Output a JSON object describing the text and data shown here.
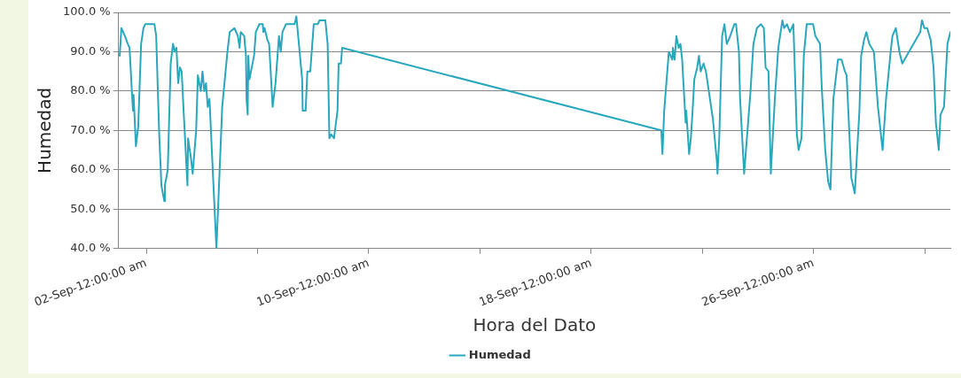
{
  "chart_data": {
    "type": "line",
    "xlabel": "Hora del Dato",
    "ylabel": "Humedad",
    "legend": "bottom",
    "grid": "y",
    "marker": "none",
    "line_style": "solid",
    "xlim": [
      "--09-01T00:00",
      "--09-30T22:00"
    ],
    "xticks": [
      {
        "value": "--09-02T00:00",
        "label": "02-Sep-12:00:00 am"
      },
      {
        "value": "--09-06T00:00",
        "label": null
      },
      {
        "value": "--09-10T00:00",
        "label": "10-Sep-12:00:00 am"
      },
      {
        "value": "--09-14T00:00",
        "label": null
      },
      {
        "value": "--09-18T00:00",
        "label": "18-Sep-12:00:00 am"
      },
      {
        "value": "--09-22T00:00",
        "label": null
      },
      {
        "value": "--09-26T00:00",
        "label": "26-Sep-12:00:00 am"
      },
      {
        "value": "--09-30T00:00",
        "label": null
      }
    ],
    "ylim": [
      40,
      100
    ],
    "yticks": [
      {
        "value": 40,
        "label": "40.0 %"
      },
      {
        "value": 50,
        "label": "50.0 %"
      },
      {
        "value": 60,
        "label": "60.0 %"
      },
      {
        "value": 70,
        "label": "70.0 %"
      },
      {
        "value": 80,
        "label": "80.0 %"
      },
      {
        "value": 90,
        "label": "90.0 %"
      },
      {
        "value": 100,
        "label": "100.0 %"
      }
    ],
    "series": [
      {
        "name": "Humedad",
        "color": "#29a8bd",
        "x": [
          "--09-01T01:00",
          "--09-01T02:30",
          "--09-01T05:30",
          "--09-01T08:00",
          "--09-01T09:30",
          "--09-01T11:30",
          "--09-01T12:30",
          "--09-01T13:00",
          "--09-01T15:00",
          "--09-01T17:00",
          "--09-01T19:30",
          "--09-01T21:30",
          "--09-01T23:00",
          "--09-02T07:00",
          "--09-02T08:30",
          "--09-02T11:00",
          "--09-02T13:00",
          "--09-02T15:30",
          "--09-02T16:00",
          "--09-02T18:30",
          "--09-02T21:00",
          "--09-02T23:00",
          "--09-03T00:30",
          "--09-03T02:00",
          "--09-03T03:30",
          "--09-03T05:00",
          "--09-03T06:30",
          "--09-03T08:00",
          "--09-03T11:30",
          "--09-03T12:00",
          "--09-03T14:30",
          "--09-03T16:00",
          "--09-03T19:00",
          "--09-03T20:30",
          "--09-03T23:00",
          "--09-04T00:30",
          "--09-04T02:00",
          "--09-04T03:30",
          "--09-04T05:00",
          "--09-04T06:30",
          "--09-04T09:00",
          "--09-04T12:30",
          "--09-04T17:30",
          "--09-04T22:00",
          "--09-05T00:00",
          "--09-05T04:00",
          "--09-05T07:00",
          "--09-05T08:30",
          "--09-05T09:30",
          "--09-05T12:30",
          "--09-05T14:00",
          "--09-05T14:30",
          "--09-05T15:30",
          "--09-05T16:00",
          "--09-05T17:00",
          "--09-05T21:00",
          "--09-05T22:30",
          "--09-06T01:30",
          "--09-06T04:30",
          "--09-06T05:00",
          "--09-06T06:00",
          "--09-06T08:30",
          "--09-06T10:00",
          "--09-06T13:00",
          "--09-06T15:30",
          "--09-06T17:00",
          "--09-06T18:30",
          "--09-06T20:00",
          "--09-06T21:30",
          "--09-07T00:30",
          "--09-07T08:00",
          "--09-07T09:30",
          "--09-07T14:30",
          "--09-07T15:00",
          "--09-07T17:30",
          "--09-07T19:00",
          "--09-07T21:30",
          "--09-08T00:30",
          "--09-08T04:00",
          "--09-08T05:30",
          "--09-08T10:30",
          "--09-08T12:30",
          "--09-08T14:00",
          "--09-08T15:30",
          "--09-08T18:00",
          "--09-08T21:00",
          "--09-08T22:00",
          "--09-09T00:00",
          "--09-09T01:00",
          "--09-20T12:30",
          "--09-20T13:30",
          "--09-20T15:00",
          "--09-20T19:00",
          "--09-20T22:00",
          "--09-20T22:30",
          "--09-21T00:00",
          "--09-21T01:30",
          "--09-21T03:30",
          "--09-21T05:00",
          "--09-21T06:30",
          "--09-21T09:30",
          "--09-21T10:00",
          "--09-21T12:30",
          "--09-21T14:00",
          "--09-21T15:30",
          "--09-21T17:00",
          "--09-21T19:30",
          "--09-21T21:00",
          "--09-21T22:30",
          "--09-22T01:00",
          "--09-22T03:00",
          "--09-22T05:30",
          "--09-22T09:00",
          "--09-22T12:30",
          "--09-22T13:00",
          "--09-22T14:30",
          "--09-22T17:00",
          "--09-22T19:00",
          "--09-22T21:00",
          "--09-23T00:00",
          "--09-23T03:30",
          "--09-23T05:00",
          "--09-23T07:30",
          "--09-23T08:30",
          "--09-23T12:00",
          "--09-23T17:30",
          "--09-23T20:00",
          "--09-23T23:00",
          "--09-24T02:30",
          "--09-24T05:00",
          "--09-24T06:30",
          "--09-24T09:00",
          "--09-24T11:00",
          "--09-24T14:30",
          "--09-24T17:30",
          "--09-24T19:00",
          "--09-24T21:00",
          "--09-24T22:30",
          "--09-25T01:00",
          "--09-25T03:30",
          "--09-25T06:30",
          "--09-25T09:30",
          "--09-25T11:00",
          "--09-25T13:30",
          "--09-25T15:30",
          "--09-25T18:00",
          "--09-25T23:30",
          "--09-26T01:30",
          "--09-26T05:30",
          "--09-26T07:00",
          "--09-26T10:00",
          "--09-26T12:30",
          "--09-26T14:30",
          "--09-26T17:00",
          "--09-26T21:00",
          "--09-27T00:00",
          "--09-27T03:00",
          "--09-27T04:30",
          "--09-27T07:00",
          "--09-27T08:30",
          "--09-27T11:30",
          "--09-27T15:30",
          "--09-27T17:00",
          "--09-27T19:30",
          "--09-27T21:30",
          "--09-28T00:00",
          "--09-28T04:00",
          "--09-28T07:30",
          "--09-28T11:30",
          "--09-28T14:30",
          "--09-28T18:30",
          "--09-28T20:00",
          "--09-28T23:00",
          "--09-29T02:00",
          "--09-29T04:30",
          "--09-29T20:00",
          "--09-29T21:30",
          "--09-29T23:30",
          "--09-30T02:00",
          "--09-30T05:00",
          "--09-30T07:30",
          "--09-30T09:30",
          "--09-30T12:00",
          "--09-30T13:30",
          "--09-30T16:30",
          "--09-30T19:30",
          "--09-30T22:00"
        ],
        "values": [
          89,
          96,
          94,
          92,
          91,
          80,
          75,
          79,
          66,
          71,
          92,
          96,
          97,
          97,
          94,
          70,
          56,
          52,
          56,
          60,
          87,
          92,
          90,
          91,
          82,
          86,
          85,
          76,
          56,
          68,
          63,
          59,
          70,
          84,
          80,
          85,
          80,
          82,
          76,
          78,
          62,
          40,
          76,
          90,
          95,
          96,
          94,
          91,
          95,
          94,
          89,
          78,
          74,
          89,
          83,
          89,
          95,
          97,
          97,
          95,
          96,
          93,
          92,
          76,
          82,
          88,
          94,
          90,
          95,
          97,
          97,
          99,
          83,
          75,
          75,
          85,
          85,
          97,
          97,
          98,
          98,
          92,
          68,
          69,
          68,
          75,
          87,
          87,
          91,
          70,
          64,
          75,
          90,
          88,
          91,
          88,
          94,
          91,
          92,
          88,
          72,
          75,
          64,
          68,
          75,
          83,
          86,
          89,
          85,
          87,
          85,
          80,
          73,
          62,
          59,
          68,
          94,
          97,
          92,
          94,
          97,
          97,
          90,
          78,
          59,
          80,
          92,
          96,
          97,
          96,
          86,
          85,
          59,
          78,
          91,
          94,
          98,
          96,
          97,
          95,
          97,
          69,
          65,
          68,
          89,
          97,
          97,
          94,
          92,
          81,
          65,
          57,
          55,
          78,
          88,
          88,
          85,
          84,
          68,
          58,
          54,
          75,
          89,
          93,
          95,
          92,
          90,
          76,
          65,
          78,
          90,
          94,
          96,
          90,
          87,
          95,
          98,
          96,
          96,
          93,
          86,
          72,
          65,
          74,
          76,
          92,
          95
        ]
      }
    ]
  }
}
